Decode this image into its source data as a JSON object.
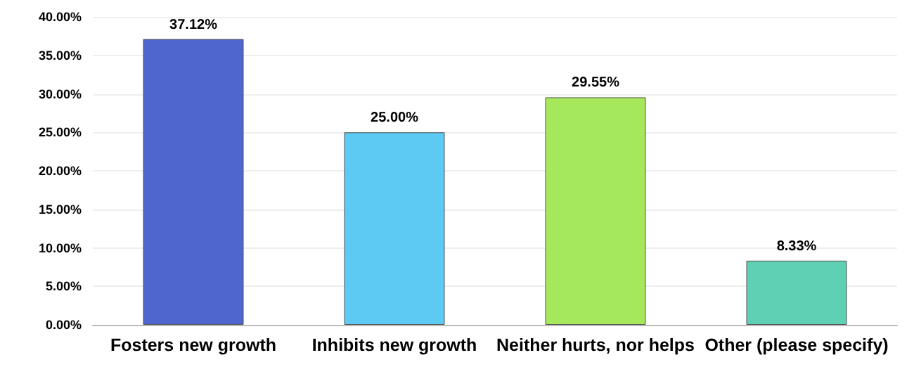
{
  "chart_data": {
    "type": "bar",
    "categories": [
      "Fosters new growth",
      "Inhibits new growth",
      "Neither hurts, nor helps",
      "Other (please specify)"
    ],
    "values": [
      37.12,
      25.0,
      29.55,
      8.33
    ],
    "colors": [
      "#4f66cf",
      "#5ccaf3",
      "#a5e85b",
      "#5fd0b3"
    ],
    "value_labels": [
      "37.12%",
      "25.00%",
      "29.55%",
      "8.33%"
    ],
    "ylim": [
      0,
      40
    ],
    "yticks": [
      {
        "value": 0,
        "label": "0.00%"
      },
      {
        "value": 5,
        "label": "5.00%"
      },
      {
        "value": 10,
        "label": "10.00%"
      },
      {
        "value": 15,
        "label": "15.00%"
      },
      {
        "value": 20,
        "label": "20.00%"
      },
      {
        "value": 25,
        "label": "25.00%"
      },
      {
        "value": 30,
        "label": "30.00%"
      },
      {
        "value": 35,
        "label": "35.00%"
      },
      {
        "value": 40,
        "label": "40.00%"
      }
    ],
    "grid": "y"
  }
}
